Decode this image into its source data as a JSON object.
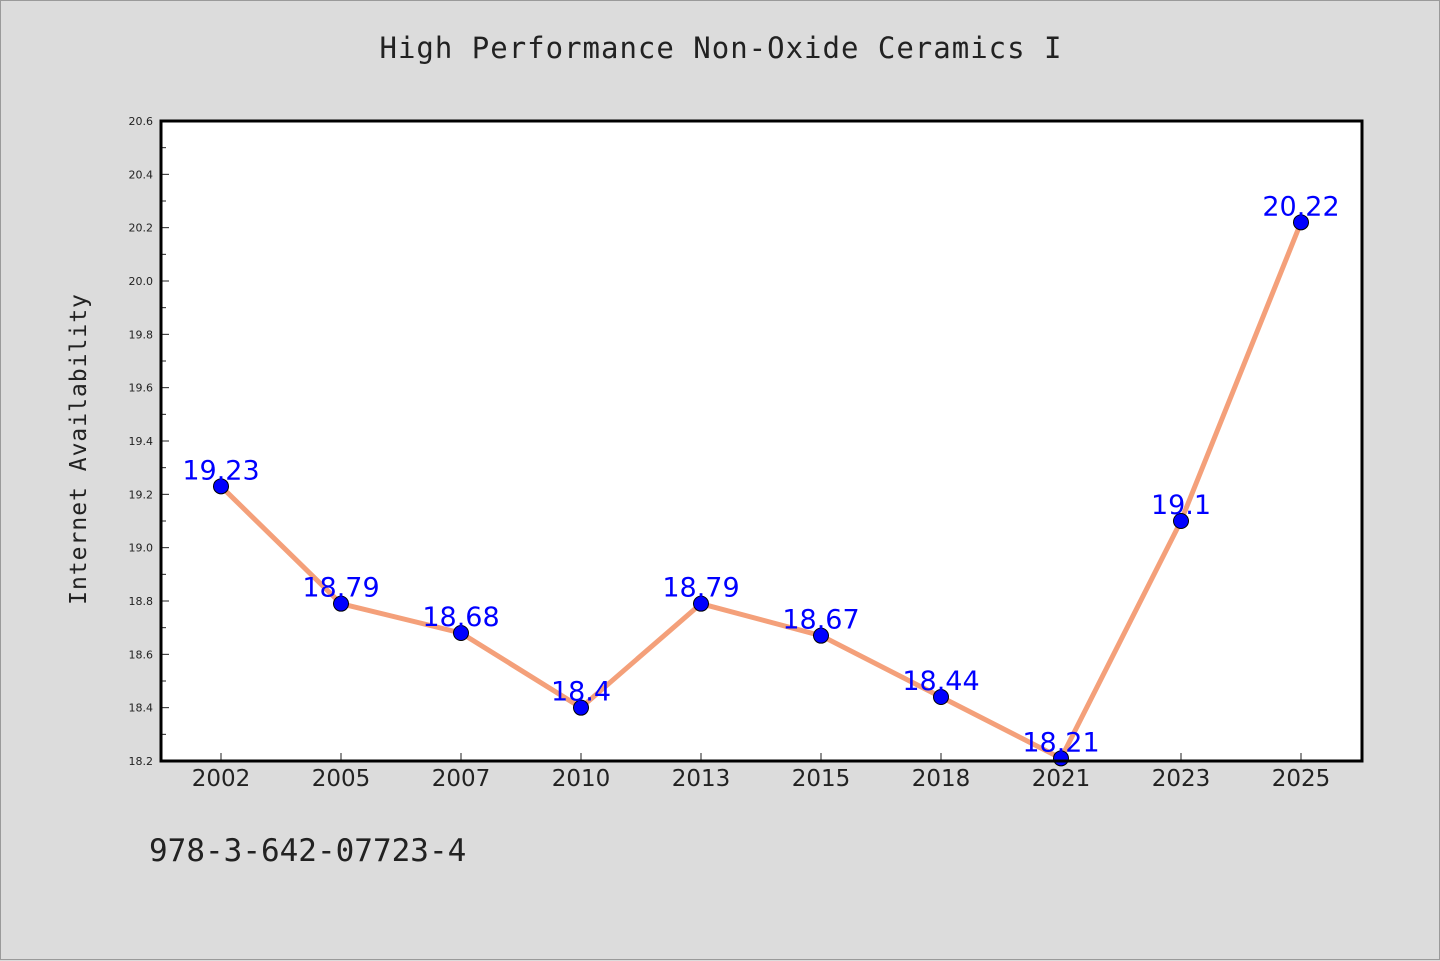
{
  "chart_data": {
    "type": "line",
    "title": "High Performance Non-Oxide Ceramics I",
    "xlabel": "",
    "ylabel": "Internet Availability",
    "categories": [
      "2002",
      "2005",
      "2007",
      "2010",
      "2013",
      "2015",
      "2018",
      "2021",
      "2023",
      "2025"
    ],
    "series": [
      {
        "values": [
          19.23,
          18.79,
          18.68,
          18.4,
          18.79,
          18.67,
          18.44,
          18.21,
          19.1,
          20.22
        ],
        "data_labels": [
          "19.23",
          "18.79",
          "18.68",
          "18.4",
          "18.79",
          "18.67",
          "18.44",
          "18.21",
          "19.1",
          "20.22"
        ],
        "line_color": "#f4a07a",
        "marker_color": "#0000ff"
      }
    ],
    "ylim": [
      18.2,
      20.6
    ],
    "yticks": [
      "18.2",
      "18.4",
      "18.6",
      "18.8",
      "19.0",
      "19.2",
      "19.4",
      "19.6",
      "19.8",
      "20.0",
      "20.2",
      "20.4",
      "20.6"
    ],
    "grid": false,
    "legend": "none"
  },
  "footer": {
    "isbn": "978-3-642-07723-4"
  },
  "colors": {
    "background": "#dcdcdc",
    "plot_background": "#ffffff",
    "line": "#f4a07a",
    "marker": "#0000ff",
    "label": "#0000ff"
  }
}
